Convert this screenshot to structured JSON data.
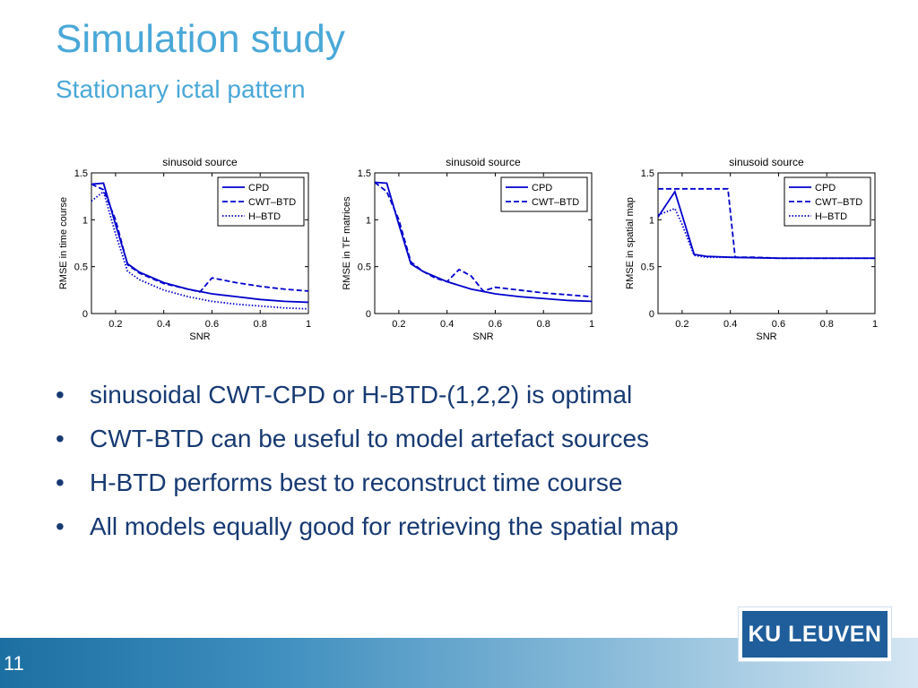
{
  "slide": {
    "title": "Simulation study",
    "subtitle": "Stationary ictal pattern",
    "page_number": "11",
    "logo_text": "KU LEUVEN",
    "accent_color": "#4aa8d8",
    "text_color": "#173a73"
  },
  "bullets": [
    "sinusoidal CWT-CPD or H-BTD-(1,2,2) is optimal",
    "CWT-BTD can be useful to model artefact sources",
    "H-BTD performs best to reconstruct time course",
    "All models equally good for retrieving the spatial map"
  ],
  "chart_data": [
    {
      "type": "line",
      "title": "sinusoid source",
      "xlabel": "SNR",
      "ylabel": "RMSE in time course",
      "xlim": [
        0.1,
        1
      ],
      "ylim": [
        0,
        1.5
      ],
      "xticks": [
        "0.2",
        "0.4",
        "0.6",
        "0.8",
        "1"
      ],
      "yticks": [
        "0",
        "0.5",
        "1",
        "1.5"
      ],
      "legend_position": "top-right",
      "series": [
        {
          "name": "CPD",
          "style": "solid",
          "color": "#0000cc",
          "x": [
            0.1,
            0.15,
            0.2,
            0.25,
            0.3,
            0.4,
            0.5,
            0.6,
            0.7,
            0.8,
            0.9,
            1.0
          ],
          "y": [
            1.38,
            1.39,
            0.95,
            0.53,
            0.44,
            0.33,
            0.26,
            0.21,
            0.18,
            0.15,
            0.13,
            0.12
          ]
        },
        {
          "name": "CWT–BTD",
          "style": "dashed",
          "color": "#0000cc",
          "x": [
            0.1,
            0.15,
            0.2,
            0.25,
            0.3,
            0.4,
            0.5,
            0.55,
            0.6,
            0.7,
            0.8,
            0.9,
            1.0
          ],
          "y": [
            1.38,
            1.32,
            1.0,
            0.52,
            0.43,
            0.32,
            0.26,
            0.23,
            0.38,
            0.33,
            0.29,
            0.26,
            0.24
          ]
        },
        {
          "name": "H–BTD",
          "style": "dotted",
          "color": "#0000cc",
          "x": [
            0.1,
            0.15,
            0.2,
            0.25,
            0.3,
            0.4,
            0.5,
            0.6,
            0.7,
            0.8,
            0.9,
            1.0
          ],
          "y": [
            1.2,
            1.3,
            0.85,
            0.45,
            0.36,
            0.25,
            0.18,
            0.13,
            0.1,
            0.08,
            0.06,
            0.05
          ]
        }
      ]
    },
    {
      "type": "line",
      "title": "sinusoid source",
      "xlabel": "SNR",
      "ylabel": "RMSE in TF matrices",
      "xlim": [
        0.1,
        1
      ],
      "ylim": [
        0,
        1.5
      ],
      "xticks": [
        "0.2",
        "0.4",
        "0.6",
        "0.8",
        "1"
      ],
      "yticks": [
        "0",
        "0.5",
        "1",
        "1.5"
      ],
      "legend_position": "top-right",
      "series": [
        {
          "name": "CPD",
          "style": "solid",
          "color": "#0000cc",
          "x": [
            0.1,
            0.15,
            0.2,
            0.25,
            0.3,
            0.4,
            0.5,
            0.6,
            0.7,
            0.8,
            0.9,
            1.0
          ],
          "y": [
            1.4,
            1.39,
            0.95,
            0.53,
            0.45,
            0.34,
            0.26,
            0.21,
            0.18,
            0.16,
            0.14,
            0.13
          ]
        },
        {
          "name": "CWT–BTD",
          "style": "dashed",
          "color": "#0000cc",
          "x": [
            0.1,
            0.15,
            0.2,
            0.25,
            0.3,
            0.35,
            0.4,
            0.45,
            0.5,
            0.55,
            0.6,
            0.7,
            0.8,
            0.9,
            1.0
          ],
          "y": [
            1.4,
            1.3,
            1.0,
            0.55,
            0.45,
            0.38,
            0.34,
            0.47,
            0.4,
            0.24,
            0.28,
            0.25,
            0.22,
            0.2,
            0.18
          ]
        }
      ]
    },
    {
      "type": "line",
      "title": "sinusoid source",
      "xlabel": "SNR",
      "ylabel": "RMSE in spatial map",
      "xlim": [
        0.1,
        1
      ],
      "ylim": [
        0,
        1.5
      ],
      "xticks": [
        "0.2",
        "0.4",
        "0.6",
        "0.8",
        "1"
      ],
      "yticks": [
        "0",
        "0.5",
        "1",
        "1.5"
      ],
      "legend_position": "top-right",
      "series": [
        {
          "name": "CPD",
          "style": "solid",
          "color": "#0000cc",
          "x": [
            0.1,
            0.17,
            0.2,
            0.25,
            0.3,
            0.4,
            0.6,
            0.8,
            1.0
          ],
          "y": [
            1.03,
            1.3,
            1.05,
            0.63,
            0.61,
            0.6,
            0.59,
            0.59,
            0.59
          ]
        },
        {
          "name": "CWT–BTD",
          "style": "dashed",
          "color": "#0000cc",
          "x": [
            0.1,
            0.15,
            0.3,
            0.39,
            0.42,
            0.5,
            0.6,
            0.8,
            1.0
          ],
          "y": [
            1.33,
            1.33,
            1.33,
            1.33,
            0.6,
            0.6,
            0.59,
            0.59,
            0.59
          ]
        },
        {
          "name": "H–BTD",
          "style": "dotted",
          "color": "#0000cc",
          "x": [
            0.1,
            0.17,
            0.2,
            0.25,
            0.3,
            0.4,
            0.6,
            0.8,
            1.0
          ],
          "y": [
            1.05,
            1.12,
            0.95,
            0.62,
            0.6,
            0.6,
            0.59,
            0.59,
            0.59
          ]
        }
      ]
    }
  ]
}
